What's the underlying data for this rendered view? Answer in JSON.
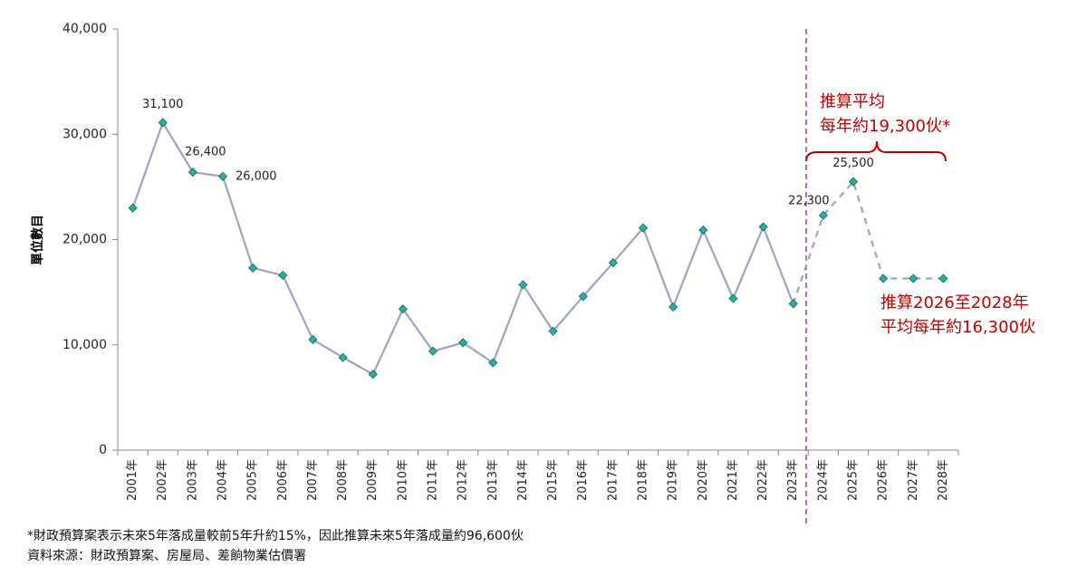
{
  "chart_data": {
    "type": "line",
    "y_label": "單位數目",
    "categories": [
      "2001年",
      "2002年",
      "2003年",
      "2004年",
      "2005年",
      "2006年",
      "2007年",
      "2008年",
      "2009年",
      "2010年",
      "2011年",
      "2012年",
      "2013年",
      "2014年",
      "2015年",
      "2016年",
      "2017年",
      "2018年",
      "2019年",
      "2020年",
      "2021年",
      "2022年",
      "2023年",
      "2024年",
      "2025年",
      "2026年",
      "2027年",
      "2028年"
    ],
    "series": [
      {
        "color": "#9aa4c4",
        "marker_color": "#1fb3a3",
        "dashed": false,
        "values": [
          23000,
          31100,
          26400,
          26000,
          17300,
          16600,
          10500,
          8800,
          7200,
          13400,
          9400,
          10200,
          8300,
          15700,
          11300,
          14600,
          17800,
          21100,
          13600,
          20900,
          14400,
          21200,
          13900,
          null,
          null,
          null,
          null,
          null
        ],
        "value_labels": [
          null,
          "31,100",
          "26,400",
          "26,000",
          null,
          null,
          null,
          null,
          null,
          null,
          null,
          null,
          null,
          null,
          null,
          null,
          null,
          null,
          null,
          null,
          null,
          null,
          null,
          null,
          null,
          null,
          null,
          null
        ]
      },
      {
        "color": "#9aa4c4",
        "marker_color": "#1fb3a3",
        "dashed": true,
        "values": [
          null,
          null,
          null,
          null,
          null,
          null,
          null,
          null,
          null,
          null,
          null,
          null,
          null,
          null,
          null,
          null,
          null,
          null,
          null,
          null,
          null,
          null,
          13900,
          22300,
          25500,
          16300,
          16300,
          16300
        ],
        "value_labels": [
          null,
          null,
          null,
          null,
          null,
          null,
          null,
          null,
          null,
          null,
          null,
          null,
          null,
          null,
          null,
          null,
          null,
          null,
          null,
          null,
          null,
          null,
          null,
          "22,300",
          "25,500",
          null,
          null,
          null
        ]
      }
    ],
    "ylim": [
      0,
      40000
    ],
    "yticks": [
      0,
      {
        "value": 10000,
        "label": "10,000"
      },
      {
        "value": 20000,
        "label": "20,000"
      },
      {
        "value": 30000,
        "label": "30,000"
      },
      {
        "value": 40000,
        "label": "40,000"
      }
    ],
    "annotations": [
      {
        "lines": [
          "推算平均",
          "每年約19,300伙*"
        ]
      },
      {
        "lines": [
          "推算2026至2028年",
          "平均每年約16,300伙"
        ]
      }
    ],
    "footnotes": [
      "*財政預算案表示未來5年落成量較前5年升約15%，因此推算未來5年落成量約96,600伙",
      "資料來源：財政預算案、房屋局、差餉物業估價署"
    ]
  }
}
